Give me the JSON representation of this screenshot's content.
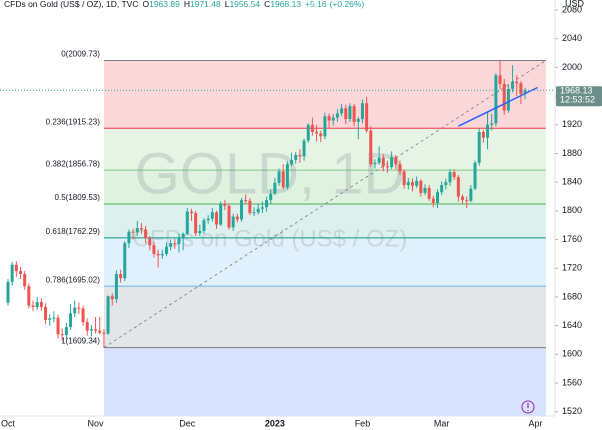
{
  "chart_data": {
    "type": "candlestick",
    "header": {
      "symbol": "CFDs on Gold (US$ / OZ), 1D, TVC",
      "ohlc_labels": [
        "O",
        "H",
        "L",
        "C"
      ],
      "change": "+5.16",
      "change_pct": "(+0.26%)"
    },
    "watermark": {
      "symbol": "GOLD, 1D",
      "description": "CFDs on Gold (US$ / OZ)"
    },
    "y_axis_label": "USD",
    "countdown": "12:53:52",
    "ylim": [
      1514,
      2094
    ],
    "yticks": [
      1520,
      1560,
      1600,
      1640,
      1680,
      1720,
      1760,
      1800,
      1840,
      1880,
      1920,
      1960,
      2000,
      2040,
      2080
    ],
    "up_color": "#26a69a",
    "down_color": "#ef5350",
    "categories": [
      "Oct",
      null,
      null,
      null,
      null,
      null,
      null,
      null,
      null,
      null,
      null,
      null,
      null,
      null,
      null,
      null,
      null,
      null,
      null,
      null,
      null,
      "Nov",
      null,
      null,
      null,
      null,
      null,
      null,
      null,
      null,
      null,
      null,
      null,
      null,
      null,
      null,
      null,
      null,
      null,
      null,
      null,
      null,
      null,
      "Dec",
      null,
      null,
      null,
      null,
      null,
      null,
      null,
      null,
      null,
      null,
      null,
      null,
      null,
      null,
      null,
      null,
      null,
      null,
      null,
      null,
      "2023",
      null,
      null,
      null,
      null,
      null,
      null,
      null,
      null,
      null,
      null,
      null,
      null,
      null,
      null,
      null,
      null,
      null,
      null,
      null,
      null,
      "Feb",
      null,
      null,
      null,
      null,
      null,
      null,
      null,
      null,
      null,
      null,
      null,
      null,
      null,
      null,
      null,
      null,
      null,
      null,
      "Mar",
      null,
      null,
      null,
      null,
      null,
      null,
      null,
      null,
      null,
      null,
      null,
      null,
      null,
      null,
      null,
      null,
      null,
      null,
      null,
      null
    ],
    "extra_x_label": {
      "index": 126.5,
      "label": "Apr"
    },
    "ohlc": [
      [
        1672,
        1705,
        1668,
        1701
      ],
      [
        1701,
        1729,
        1696,
        1725
      ],
      [
        1725,
        1730,
        1708,
        1716
      ],
      [
        1716,
        1722,
        1705,
        1712
      ],
      [
        1712,
        1716,
        1690,
        1695
      ],
      [
        1695,
        1699,
        1664,
        1668
      ],
      [
        1668,
        1675,
        1660,
        1666
      ],
      [
        1666,
        1680,
        1662,
        1673
      ],
      [
        1673,
        1678,
        1661,
        1666
      ],
      [
        1666,
        1671,
        1642,
        1648
      ],
      [
        1648,
        1656,
        1640,
        1650
      ],
      [
        1650,
        1660,
        1645,
        1651
      ],
      [
        1651,
        1655,
        1622,
        1628
      ],
      [
        1628,
        1636,
        1618,
        1627
      ],
      [
        1627,
        1644,
        1620,
        1638
      ],
      [
        1638,
        1670,
        1634,
        1657
      ],
      [
        1657,
        1675,
        1652,
        1665
      ],
      [
        1665,
        1672,
        1656,
        1664
      ],
      [
        1664,
        1668,
        1640,
        1645
      ],
      [
        1645,
        1650,
        1626,
        1633
      ],
      [
        1633,
        1641,
        1625,
        1635
      ],
      [
        1635,
        1652,
        1629,
        1633
      ],
      [
        1633,
        1652,
        1628,
        1630
      ],
      [
        1630,
        1635,
        1609.34,
        1629
      ],
      [
        1629,
        1682,
        1627,
        1681
      ],
      [
        1681,
        1685,
        1668,
        1677
      ],
      [
        1677,
        1717,
        1672,
        1712
      ],
      [
        1712,
        1718,
        1700,
        1706
      ],
      [
        1706,
        1758,
        1702,
        1755
      ],
      [
        1755,
        1774,
        1748,
        1771
      ],
      [
        1771,
        1775,
        1760,
        1770
      ],
      [
        1770,
        1786,
        1765,
        1776
      ],
      [
        1776,
        1783,
        1768,
        1774
      ],
      [
        1774,
        1779,
        1755,
        1762
      ],
      [
        1762,
        1765,
        1745,
        1752
      ],
      [
        1752,
        1757,
        1735,
        1740
      ],
      [
        1740,
        1746,
        1721,
        1738
      ],
      [
        1738,
        1746,
        1733,
        1740
      ],
      [
        1740,
        1756,
        1737,
        1750
      ],
      [
        1750,
        1760,
        1745,
        1755
      ],
      [
        1755,
        1761,
        1747,
        1754
      ],
      [
        1754,
        1768,
        1742,
        1763
      ],
      [
        1763,
        1770,
        1745,
        1768
      ],
      [
        1768,
        1804,
        1766,
        1799
      ],
      [
        1799,
        1803,
        1786,
        1797
      ],
      [
        1797,
        1800,
        1765,
        1769
      ],
      [
        1769,
        1781,
        1765,
        1772
      ],
      [
        1772,
        1790,
        1768,
        1787
      ],
      [
        1787,
        1794,
        1782,
        1789
      ],
      [
        1789,
        1804,
        1785,
        1798
      ],
      [
        1798,
        1800,
        1775,
        1781
      ],
      [
        1781,
        1813,
        1779,
        1810
      ],
      [
        1810,
        1815,
        1801,
        1807
      ],
      [
        1807,
        1810,
        1774,
        1777
      ],
      [
        1777,
        1796,
        1772,
        1792
      ],
      [
        1792,
        1796,
        1784,
        1788
      ],
      [
        1788,
        1818,
        1785,
        1815
      ],
      [
        1815,
        1823,
        1809,
        1814
      ],
      [
        1814,
        1818,
        1794,
        1797
      ],
      [
        1797,
        1805,
        1793,
        1798
      ],
      [
        1798,
        1810,
        1795,
        1803
      ],
      [
        1803,
        1813,
        1797,
        1805
      ],
      [
        1805,
        1820,
        1799,
        1815
      ],
      [
        1815,
        1830,
        1810,
        1824
      ],
      [
        1824,
        1846,
        1822,
        1839
      ],
      [
        1839,
        1859,
        1835,
        1855
      ],
      [
        1855,
        1865,
        1830,
        1833
      ],
      [
        1833,
        1869,
        1830,
        1865
      ],
      [
        1865,
        1881,
        1862,
        1871
      ],
      [
        1871,
        1882,
        1866,
        1878
      ],
      [
        1878,
        1886,
        1867,
        1876
      ],
      [
        1876,
        1901,
        1870,
        1898
      ],
      [
        1898,
        1922,
        1895,
        1920
      ],
      [
        1920,
        1930,
        1905,
        1910
      ],
      [
        1910,
        1920,
        1897,
        1908
      ],
      [
        1908,
        1912,
        1896,
        1904
      ],
      [
        1904,
        1937,
        1900,
        1932
      ],
      [
        1932,
        1936,
        1915,
        1926
      ],
      [
        1926,
        1935,
        1919,
        1930
      ],
      [
        1930,
        1942,
        1924,
        1936
      ],
      [
        1936,
        1949,
        1932,
        1943
      ],
      [
        1943,
        1948,
        1921,
        1928
      ],
      [
        1928,
        1950,
        1924,
        1946
      ],
      [
        1946,
        1949,
        1918,
        1924
      ],
      [
        1924,
        1931,
        1900,
        1928
      ],
      [
        1928,
        1955,
        1922,
        1950
      ],
      [
        1950,
        1959,
        1909,
        1912
      ],
      [
        1912,
        1918,
        1861,
        1865
      ],
      [
        1865,
        1872,
        1859,
        1867
      ],
      [
        1867,
        1890,
        1864,
        1874
      ],
      [
        1874,
        1879,
        1855,
        1862
      ],
      [
        1862,
        1870,
        1853,
        1861
      ],
      [
        1861,
        1883,
        1858,
        1875
      ],
      [
        1875,
        1878,
        1858,
        1865
      ],
      [
        1865,
        1870,
        1850,
        1855
      ],
      [
        1855,
        1858,
        1831,
        1836
      ],
      [
        1836,
        1846,
        1830,
        1840
      ],
      [
        1840,
        1845,
        1827,
        1835
      ],
      [
        1835,
        1848,
        1832,
        1842
      ],
      [
        1842,
        1844,
        1820,
        1825
      ],
      [
        1825,
        1837,
        1822,
        1832
      ],
      [
        1832,
        1836,
        1814,
        1817
      ],
      [
        1817,
        1821,
        1805,
        1811
      ],
      [
        1811,
        1830,
        1804,
        1826
      ],
      [
        1826,
        1841,
        1822,
        1836
      ],
      [
        1836,
        1845,
        1830,
        1840
      ],
      [
        1840,
        1858,
        1835,
        1854
      ],
      [
        1854,
        1858,
        1843,
        1847
      ],
      [
        1847,
        1850,
        1813,
        1820
      ],
      [
        1820,
        1823,
        1810,
        1815
      ],
      [
        1815,
        1820,
        1804,
        1814
      ],
      [
        1814,
        1836,
        1812,
        1831
      ],
      [
        1831,
        1870,
        1829,
        1867
      ],
      [
        1867,
        1915,
        1863,
        1910
      ],
      [
        1910,
        1913,
        1895,
        1902
      ],
      [
        1902,
        1937,
        1886,
        1920
      ],
      [
        1920,
        1935,
        1912,
        1922
      ],
      [
        1922,
        1992,
        1918,
        1989
      ],
      [
        1989,
        2009.73,
        1970,
        1977
      ],
      [
        1977,
        1984,
        1934,
        1940
      ],
      [
        1940,
        1975,
        1937,
        1970
      ],
      [
        1970,
        2003,
        1965,
        1980
      ],
      [
        1980,
        1989,
        1960,
        1978
      ],
      [
        1978,
        1981,
        1949,
        1962.97
      ],
      [
        1963.89,
        1971.48,
        1955.54,
        1968.13
      ]
    ],
    "fibonacci": {
      "x": [
        23,
        129
      ],
      "fill_below": "rgba(41,98,255,0.18)",
      "levels": [
        {
          "value": 2009.73,
          "label": "0(2009.73)",
          "color": "#787b86",
          "fill": "rgba(242,54,69,0.2)"
        },
        {
          "value": 1915.23,
          "label": "0.236(1915.23)",
          "color": "#f23645",
          "fill": "rgba(129,199,132,0.2)"
        },
        {
          "value": 1856.78,
          "label": "0.382(1856.78)",
          "color": "#81c784",
          "fill": "rgba(76,175,80,0.18)"
        },
        {
          "value": 1809.53,
          "label": "0.5(1809.53)",
          "color": "#4caf50",
          "fill": "rgba(8,153,129,0.14)"
        },
        {
          "value": 1762.29,
          "label": "0.618(1762.29)",
          "color": "#089981",
          "fill": "rgba(100,181,246,0.2)"
        },
        {
          "value": 1695.02,
          "label": "0.786(1695.02)",
          "color": "#64b5f6",
          "fill": "rgba(120,123,134,0.2)"
        },
        {
          "value": 1609.34,
          "label": "1(1609.34)",
          "color": "#787b86",
          "fill": null
        }
      ]
    },
    "trendline": {
      "x": [
        108,
        127
      ],
      "y": [
        1918,
        1972
      ],
      "color": "#2962ff"
    }
  }
}
